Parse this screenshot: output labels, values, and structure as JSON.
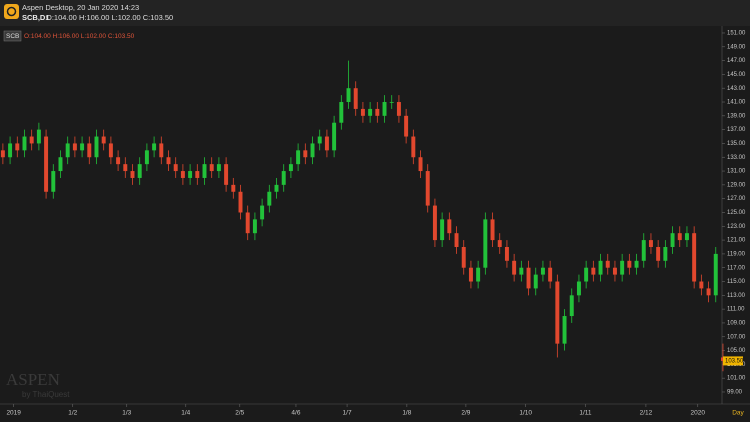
{
  "header": {
    "title": "Aspen Desktop, 20 Jan 2020 14:23",
    "symbol": "SCB,D1",
    "ohlc": "O:104.00 H:106.00 L:102.00 C:103.50"
  },
  "legend": {
    "symbol": "SCB",
    "ohlc": "O:104.00 H:106.00 L:102.00 C:103.50"
  },
  "watermark": {
    "brand": "ASPEN",
    "by": "by ThaiQuest"
  },
  "chart_data": {
    "type": "candlestick",
    "x_label": "Day",
    "up_color": "#22c23a",
    "down_color": "#e2482e",
    "grid": false,
    "last_price_label": "103.50",
    "xlim": [
      -0.4,
      100.7
    ],
    "xticks": [
      {
        "value": 1.5,
        "label": "2019"
      },
      {
        "value": 9.7,
        "label": "1/2"
      },
      {
        "value": 17.2,
        "label": "1/3"
      },
      {
        "value": 25.4,
        "label": "1/4"
      },
      {
        "value": 32.9,
        "label": "2/5"
      },
      {
        "value": 40.7,
        "label": "4/6"
      },
      {
        "value": 47.8,
        "label": "1/7"
      },
      {
        "value": 56.1,
        "label": "1/8"
      },
      {
        "value": 64.3,
        "label": "2/9"
      },
      {
        "value": 72.6,
        "label": "1/10"
      },
      {
        "value": 80.9,
        "label": "1/11"
      },
      {
        "value": 89.3,
        "label": "2/12"
      },
      {
        "value": 96.5,
        "label": "2020"
      }
    ],
    "ylim": [
      98.2,
      152.3
    ],
    "yticks": [
      {
        "value": 99,
        "label": "99.00"
      },
      {
        "value": 101,
        "label": "101.00"
      },
      {
        "value": 103,
        "label": "103.00"
      },
      {
        "value": 105,
        "label": "105.00"
      },
      {
        "value": 107,
        "label": "107.00"
      },
      {
        "value": 109,
        "label": "109.00"
      },
      {
        "value": 111,
        "label": "111.00"
      },
      {
        "value": 113,
        "label": "113.00"
      },
      {
        "value": 115,
        "label": "115.00"
      },
      {
        "value": 117,
        "label": "117.00"
      },
      {
        "value": 119,
        "label": "119.00"
      },
      {
        "value": 121,
        "label": "121.00"
      },
      {
        "value": 123,
        "label": "123.00"
      },
      {
        "value": 125,
        "label": "125.00"
      },
      {
        "value": 127,
        "label": "127.00"
      },
      {
        "value": 129,
        "label": "129.00"
      },
      {
        "value": 131,
        "label": "131.00"
      },
      {
        "value": 133,
        "label": "133.00"
      },
      {
        "value": 135,
        "label": "135.00"
      },
      {
        "value": 137,
        "label": "137.00"
      },
      {
        "value": 139,
        "label": "139.00"
      },
      {
        "value": 141,
        "label": "141.00"
      },
      {
        "value": 143,
        "label": "143.00"
      },
      {
        "value": 145,
        "label": "145.00"
      },
      {
        "value": 147,
        "label": "147.00"
      },
      {
        "value": 149,
        "label": "149.00"
      },
      {
        "value": 151,
        "label": "151.00"
      }
    ],
    "open": [
      134,
      133,
      135,
      134,
      136,
      135,
      136,
      128,
      131,
      133,
      135,
      134,
      135,
      133,
      136,
      135,
      133,
      132,
      131,
      130,
      132,
      134,
      135,
      133,
      132,
      131,
      130,
      131,
      130,
      132,
      131,
      132,
      129,
      128,
      125,
      122,
      124,
      126,
      128,
      129,
      131,
      132,
      134,
      133,
      135,
      136,
      134,
      138,
      141,
      143,
      140,
      139,
      140,
      139,
      141,
      141,
      139,
      136,
      133,
      131,
      126,
      121,
      124,
      122,
      120,
      117,
      115,
      117,
      124,
      121,
      120,
      118,
      116,
      117,
      114,
      116,
      117,
      115,
      106,
      110,
      113,
      115,
      117,
      116,
      118,
      117,
      116,
      118,
      117,
      118,
      121,
      120,
      118,
      120,
      122,
      121,
      122,
      115,
      114,
      113,
      104
    ],
    "high": [
      135,
      136,
      136,
      137,
      137,
      138,
      137,
      132,
      134,
      136,
      136,
      136,
      136,
      137,
      137,
      136,
      134,
      133,
      132,
      133,
      135,
      136,
      136,
      134,
      133,
      132,
      132,
      132,
      133,
      133,
      133,
      133,
      130,
      129,
      126,
      125,
      127,
      129,
      130,
      132,
      133,
      135,
      135,
      136,
      137,
      137,
      139,
      142,
      147,
      144,
      141,
      141,
      141,
      142,
      142,
      142,
      140,
      137,
      134,
      132,
      127,
      125,
      125,
      123,
      121,
      118,
      118,
      125,
      125,
      122,
      121,
      119,
      118,
      118,
      117,
      118,
      118,
      116,
      111,
      114,
      116,
      118,
      118,
      119,
      119,
      118,
      119,
      119,
      119,
      122,
      122,
      121,
      121,
      123,
      123,
      123,
      123,
      116,
      115,
      120,
      106
    ],
    "low": [
      132,
      132,
      133,
      133,
      134,
      134,
      127,
      127,
      130,
      132,
      133,
      133,
      132,
      132,
      134,
      132,
      131,
      130,
      129,
      129,
      131,
      133,
      132,
      131,
      130,
      129,
      129,
      129,
      129,
      130,
      130,
      128,
      127,
      124,
      121,
      121,
      123,
      125,
      127,
      128,
      130,
      131,
      132,
      132,
      134,
      133,
      133,
      137,
      140,
      139,
      138,
      138,
      138,
      138,
      140,
      138,
      135,
      132,
      130,
      125,
      120,
      120,
      121,
      119,
      116,
      114,
      114,
      116,
      120,
      119,
      117,
      115,
      115,
      113,
      113,
      115,
      114,
      104,
      105,
      109,
      112,
      114,
      115,
      115,
      116,
      115,
      115,
      116,
      116,
      117,
      119,
      117,
      117,
      119,
      120,
      120,
      114,
      113,
      112,
      112,
      102
    ],
    "close": [
      133,
      135,
      134,
      136,
      135,
      137,
      128,
      131,
      133,
      135,
      134,
      135,
      133,
      136,
      135,
      133,
      132,
      131,
      130,
      132,
      134,
      135,
      133,
      132,
      131,
      130,
      131,
      130,
      132,
      131,
      132,
      129,
      128,
      125,
      122,
      124,
      126,
      128,
      129,
      131,
      132,
      134,
      133,
      135,
      136,
      134,
      138,
      141,
      143,
      140,
      139,
      140,
      139,
      141,
      141,
      139,
      136,
      133,
      131,
      126,
      121,
      124,
      122,
      120,
      117,
      115,
      117,
      124,
      121,
      120,
      118,
      116,
      117,
      114,
      116,
      117,
      115,
      106,
      110,
      113,
      115,
      117,
      116,
      118,
      117,
      116,
      118,
      117,
      118,
      121,
      120,
      118,
      120,
      122,
      121,
      122,
      115,
      114,
      113,
      119,
      103.5
    ]
  }
}
